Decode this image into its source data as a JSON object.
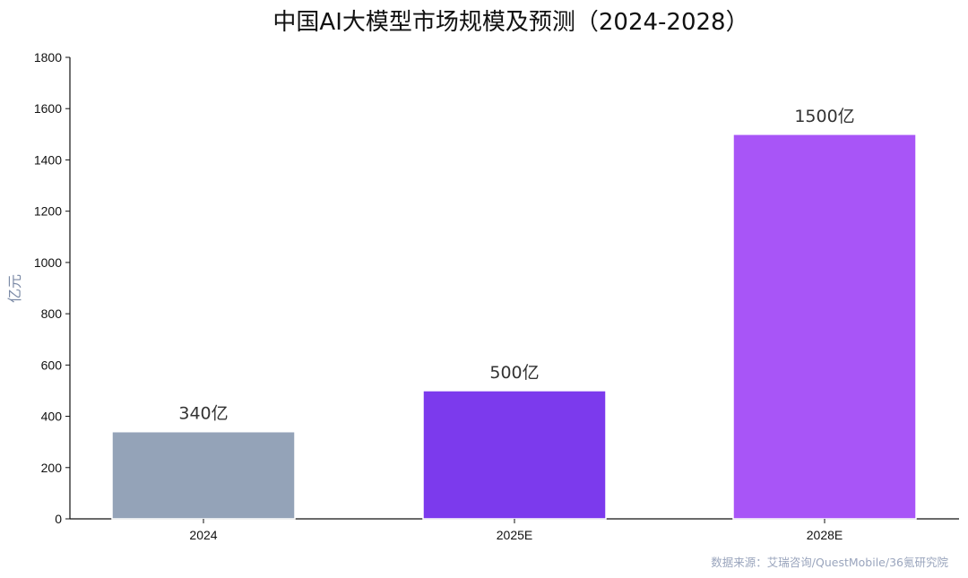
{
  "colors": {
    "bars": [
      "#94a3b8",
      "#7c3aed",
      "#a855f7"
    ],
    "axis": "#111111",
    "ylabel": "#7b8aa6",
    "source": "#9aa5bd",
    "title": "#111111",
    "value_label": "#333333"
  },
  "chart_data": {
    "type": "bar",
    "title": "中国AI大模型市场规模及预测（2024-2028）",
    "ylabel": "亿元",
    "xlabel": "",
    "categories": [
      "2024",
      "2025E",
      "2028E"
    ],
    "values": [
      340,
      500,
      1500
    ],
    "value_labels": [
      "340亿",
      "500亿",
      "1500亿"
    ],
    "ylim": [
      0,
      1800
    ],
    "yticks": [
      "0",
      "200",
      "400",
      "600",
      "800",
      "1000",
      "1200",
      "1400",
      "1600",
      "1800"
    ],
    "grid": false,
    "legend": "none",
    "source": "数据来源：艾瑞咨询/QuestMobile/36氪研究院"
  }
}
